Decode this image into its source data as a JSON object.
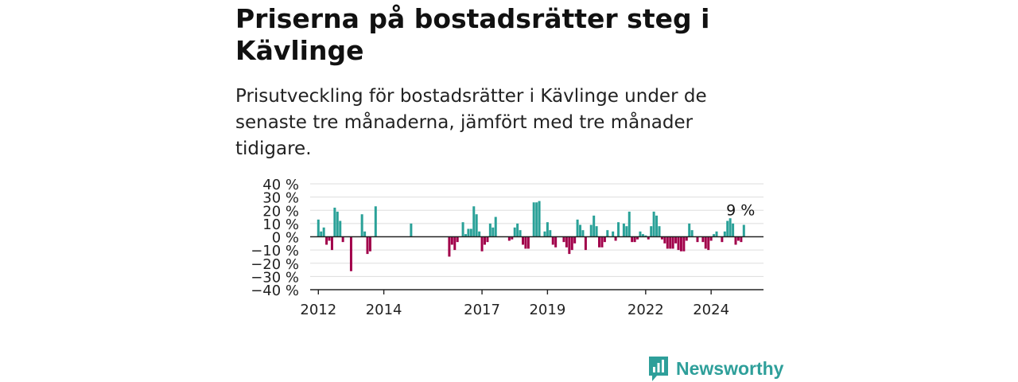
{
  "header": {
    "title": "Priserna på bostadsrätter steg i Kävlinge",
    "subtitle": "Prisutveckling för bostadsrätter i Kävlinge under de senaste tre månaderna, jämfört med tre månader tidigare."
  },
  "brand": {
    "name": "Newsworthy",
    "icon": "bar-chart-speech-bubble-icon"
  },
  "colors": {
    "positive": "#2aa198",
    "negative": "#a1004a",
    "grid": "#dddddd",
    "axis": "#222222"
  },
  "chart_data": {
    "type": "bar",
    "ylim": [
      -40,
      40
    ],
    "y_ticks": [
      40,
      30,
      20,
      10,
      0,
      -10,
      -20,
      -30,
      -40
    ],
    "y_tick_labels": [
      "40 %",
      "30 %",
      "20 %",
      "10 %",
      "0 %",
      "−10 %",
      "−20 %",
      "−30 %",
      "−40 %"
    ],
    "x_ticks": [
      2012,
      2014,
      2017,
      2019,
      2022,
      2024
    ],
    "x_tick_labels": [
      "2012",
      "2014",
      "2017",
      "2019",
      "2022",
      "2024"
    ],
    "xlim": [
      2011.75,
      2025.6
    ],
    "grid": true,
    "annotation": {
      "text": "9 %",
      "x": 2024.9,
      "y": 9
    },
    "series": [
      {
        "points": [
          {
            "x": 2012.0,
            "y": 13
          },
          {
            "x": 2012.083,
            "y": 4
          },
          {
            "x": 2012.167,
            "y": 7
          },
          {
            "x": 2012.25,
            "y": -6
          },
          {
            "x": 2012.333,
            "y": -3
          },
          {
            "x": 2012.417,
            "y": -10
          },
          {
            "x": 2012.5,
            "y": 22
          },
          {
            "x": 2012.583,
            "y": 19
          },
          {
            "x": 2012.667,
            "y": 12
          },
          {
            "x": 2012.75,
            "y": -4
          },
          {
            "x": 2013.0,
            "y": -26
          },
          {
            "x": 2013.333,
            "y": 17
          },
          {
            "x": 2013.417,
            "y": 4
          },
          {
            "x": 2013.5,
            "y": -13
          },
          {
            "x": 2013.583,
            "y": -11
          },
          {
            "x": 2013.75,
            "y": 23
          },
          {
            "x": 2014.833,
            "y": 10
          },
          {
            "x": 2016.0,
            "y": -15
          },
          {
            "x": 2016.083,
            "y": -6
          },
          {
            "x": 2016.167,
            "y": -10
          },
          {
            "x": 2016.25,
            "y": -4
          },
          {
            "x": 2016.417,
            "y": 11
          },
          {
            "x": 2016.5,
            "y": 2
          },
          {
            "x": 2016.583,
            "y": 6
          },
          {
            "x": 2016.667,
            "y": 6
          },
          {
            "x": 2016.75,
            "y": 23
          },
          {
            "x": 2016.833,
            "y": 17
          },
          {
            "x": 2016.917,
            "y": 4
          },
          {
            "x": 2017.0,
            "y": -11
          },
          {
            "x": 2017.083,
            "y": -6
          },
          {
            "x": 2017.167,
            "y": -4
          },
          {
            "x": 2017.25,
            "y": 10
          },
          {
            "x": 2017.333,
            "y": 7
          },
          {
            "x": 2017.417,
            "y": 15
          },
          {
            "x": 2017.833,
            "y": -3
          },
          {
            "x": 2017.917,
            "y": -2
          },
          {
            "x": 2018.0,
            "y": 7
          },
          {
            "x": 2018.083,
            "y": 10
          },
          {
            "x": 2018.167,
            "y": 5
          },
          {
            "x": 2018.25,
            "y": -6
          },
          {
            "x": 2018.333,
            "y": -9
          },
          {
            "x": 2018.417,
            "y": -9
          },
          {
            "x": 2018.583,
            "y": 26
          },
          {
            "x": 2018.667,
            "y": 26
          },
          {
            "x": 2018.75,
            "y": 27
          },
          {
            "x": 2018.917,
            "y": 4
          },
          {
            "x": 2019.0,
            "y": 11
          },
          {
            "x": 2019.083,
            "y": 5
          },
          {
            "x": 2019.167,
            "y": -6
          },
          {
            "x": 2019.25,
            "y": -8
          },
          {
            "x": 2019.5,
            "y": -4
          },
          {
            "x": 2019.583,
            "y": -8
          },
          {
            "x": 2019.667,
            "y": -13
          },
          {
            "x": 2019.75,
            "y": -10
          },
          {
            "x": 2019.833,
            "y": -5
          },
          {
            "x": 2019.917,
            "y": 13
          },
          {
            "x": 2020.0,
            "y": 9
          },
          {
            "x": 2020.083,
            "y": 5
          },
          {
            "x": 2020.167,
            "y": -10
          },
          {
            "x": 2020.333,
            "y": 9
          },
          {
            "x": 2020.417,
            "y": 16
          },
          {
            "x": 2020.5,
            "y": 8
          },
          {
            "x": 2020.583,
            "y": -8
          },
          {
            "x": 2020.667,
            "y": -8
          },
          {
            "x": 2020.75,
            "y": -4
          },
          {
            "x": 2020.833,
            "y": 5
          },
          {
            "x": 2021.0,
            "y": 4
          },
          {
            "x": 2021.083,
            "y": -3
          },
          {
            "x": 2021.167,
            "y": 11
          },
          {
            "x": 2021.333,
            "y": 10
          },
          {
            "x": 2021.417,
            "y": 8
          },
          {
            "x": 2021.5,
            "y": 19
          },
          {
            "x": 2021.583,
            "y": -4
          },
          {
            "x": 2021.667,
            "y": -4
          },
          {
            "x": 2021.75,
            "y": -2
          },
          {
            "x": 2021.833,
            "y": 4
          },
          {
            "x": 2021.917,
            "y": 2
          },
          {
            "x": 2022.0,
            "y": 1
          },
          {
            "x": 2022.083,
            "y": -2
          },
          {
            "x": 2022.167,
            "y": 8
          },
          {
            "x": 2022.25,
            "y": 19
          },
          {
            "x": 2022.333,
            "y": 16
          },
          {
            "x": 2022.417,
            "y": 8
          },
          {
            "x": 2022.5,
            "y": -2
          },
          {
            "x": 2022.583,
            "y": -5
          },
          {
            "x": 2022.667,
            "y": -9
          },
          {
            "x": 2022.75,
            "y": -9
          },
          {
            "x": 2022.833,
            "y": -9
          },
          {
            "x": 2022.917,
            "y": -5
          },
          {
            "x": 2023.0,
            "y": -10
          },
          {
            "x": 2023.083,
            "y": -11
          },
          {
            "x": 2023.167,
            "y": -11
          },
          {
            "x": 2023.25,
            "y": -3
          },
          {
            "x": 2023.333,
            "y": 10
          },
          {
            "x": 2023.417,
            "y": 5
          },
          {
            "x": 2023.583,
            "y": -4
          },
          {
            "x": 2023.75,
            "y": -4
          },
          {
            "x": 2023.833,
            "y": -9
          },
          {
            "x": 2023.917,
            "y": -10
          },
          {
            "x": 2024.0,
            "y": -3
          },
          {
            "x": 2024.083,
            "y": 2
          },
          {
            "x": 2024.167,
            "y": 4
          },
          {
            "x": 2024.333,
            "y": -4
          },
          {
            "x": 2024.417,
            "y": 4
          },
          {
            "x": 2024.5,
            "y": 12
          },
          {
            "x": 2024.583,
            "y": 14
          },
          {
            "x": 2024.667,
            "y": 10
          },
          {
            "x": 2024.75,
            "y": -6
          },
          {
            "x": 2024.833,
            "y": -3
          },
          {
            "x": 2024.917,
            "y": -4
          },
          {
            "x": 2025.0,
            "y": 9
          }
        ]
      }
    ]
  }
}
